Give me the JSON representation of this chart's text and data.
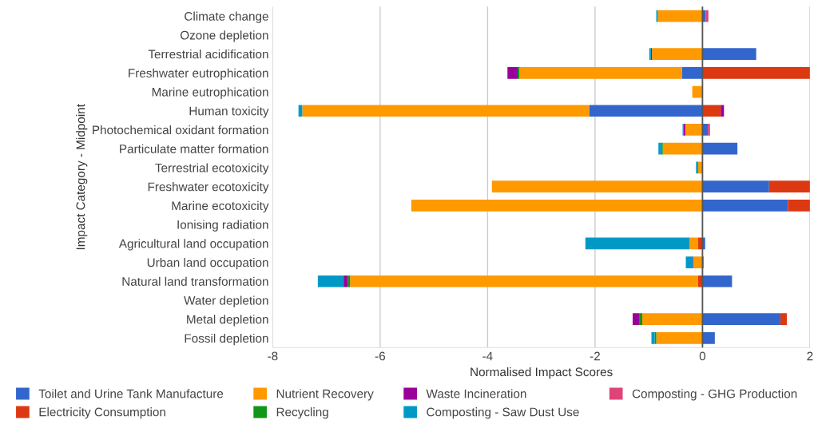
{
  "chart_data": {
    "type": "bar",
    "orientation": "horizontal",
    "stacked": true,
    "xlabel": "Normalised Impact Scores",
    "ylabel": "Impact Category - Midpoint",
    "categories": [
      "Climate change",
      "Ozone depletion",
      "Terrestrial acidification",
      "Freshwater eutrophication",
      "Marine eutrophication",
      "Human toxicity",
      "Photochemical oxidant formation",
      "Particulate matter formation",
      "Terrestrial ecotoxicity",
      "Freshwater ecotoxicity",
      "Marine ecotoxicity",
      "Ionising radiation",
      "Agricultural land occupation",
      "Urban land occupation",
      "Natural land transformation",
      "Water depletion",
      "Metal depletion",
      "Fossil depletion"
    ],
    "series": [
      {
        "name": "Toilet and Urine Tank Manufacture",
        "color": "#3366cc",
        "values": [
          0.06,
          null,
          1.0,
          -0.38,
          null,
          -2.11,
          0.1,
          0.65,
          null,
          1.24,
          1.59,
          null,
          0.05,
          0.02,
          0.55,
          null,
          1.45,
          0.23
        ]
      },
      {
        "name": "Electricity Consumption",
        "color": "#dc3912",
        "values": [
          null,
          null,
          null,
          2.0,
          null,
          0.34,
          null,
          null,
          null,
          0.76,
          0.41,
          null,
          -0.08,
          null,
          -0.08,
          null,
          0.12,
          null
        ]
      },
      {
        "name": "Nutrient Recovery",
        "color": "#ff9900",
        "values": [
          -0.83,
          null,
          -0.94,
          -3.03,
          -0.19,
          -5.34,
          -0.32,
          -0.74,
          -0.08,
          -3.92,
          -5.42,
          null,
          -0.16,
          -0.17,
          -6.48,
          null,
          -1.12,
          -0.86
        ]
      },
      {
        "name": "Recycling",
        "color": "#109618",
        "values": [
          null,
          null,
          null,
          -0.03,
          null,
          null,
          null,
          -0.03,
          null,
          null,
          null,
          null,
          null,
          null,
          -0.04,
          null,
          -0.06,
          -0.03
        ]
      },
      {
        "name": "Waste Incineration",
        "color": "#990099",
        "values": [
          null,
          null,
          -0.02,
          -0.19,
          null,
          0.06,
          -0.03,
          null,
          null,
          null,
          null,
          null,
          null,
          -0.01,
          -0.08,
          null,
          -0.12,
          null
        ]
      },
      {
        "name": "Composting - Saw Dust Use",
        "color": "#0099c6",
        "values": [
          -0.03,
          null,
          -0.03,
          null,
          null,
          -0.07,
          -0.02,
          -0.05,
          -0.04,
          null,
          null,
          null,
          -1.94,
          -0.13,
          -0.48,
          null,
          null,
          -0.06
        ]
      },
      {
        "name": "Composting - GHG Production",
        "color": "#dd4477",
        "values": [
          0.05,
          null,
          null,
          null,
          null,
          null,
          0.04,
          null,
          null,
          null,
          null,
          null,
          null,
          null,
          null,
          null,
          null,
          null
        ]
      }
    ],
    "xlim": [
      -8,
      2
    ],
    "xticks": [
      -8,
      -6,
      -4,
      -2,
      0,
      2
    ],
    "grid": "x",
    "legend": "bottom",
    "ref_lines": [
      {
        "axis": "x",
        "value": 0,
        "color": "#555555"
      }
    ]
  }
}
